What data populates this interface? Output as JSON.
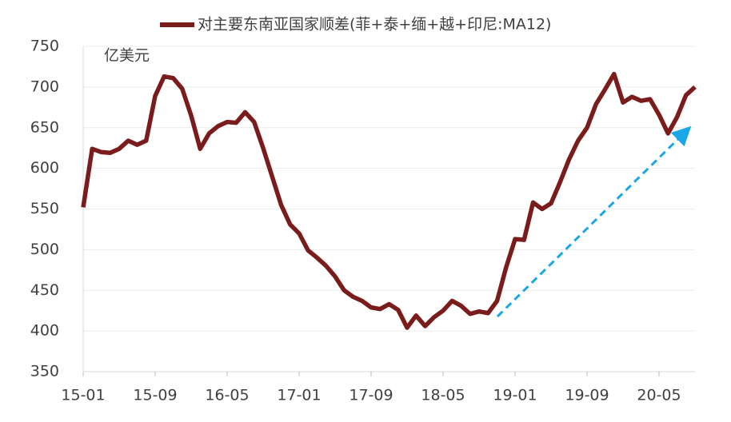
{
  "chart_data": {
    "type": "line",
    "title": "对主要东南亚国家顺差(菲+泰+缅+越+印尼:MA12)",
    "unit": "亿美元",
    "categories": [
      "15-01",
      null,
      null,
      null,
      null,
      null,
      null,
      null,
      "15-09",
      null,
      null,
      null,
      null,
      null,
      null,
      null,
      "16-05",
      null,
      null,
      null,
      null,
      null,
      null,
      null,
      "17-01",
      null,
      null,
      null,
      null,
      null,
      null,
      null,
      "17-09",
      null,
      null,
      null,
      null,
      null,
      null,
      null,
      "18-05",
      null,
      null,
      null,
      null,
      null,
      null,
      null,
      "19-01",
      null,
      null,
      null,
      null,
      null,
      null,
      null,
      "19-09",
      null,
      null,
      null,
      null,
      null,
      null,
      null,
      "20-05",
      null,
      null,
      null,
      null
    ],
    "series": [
      {
        "name": "对主要东南亚国家顺差(菲+泰+缅+越+印尼:MA12)",
        "color": "#7b1c1c",
        "values": [
          552,
          624,
          620,
          619,
          624,
          634,
          629,
          634,
          689,
          713,
          711,
          698,
          665,
          624,
          643,
          652,
          657,
          656,
          669,
          657,
          625,
          590,
          555,
          531,
          520,
          499,
          490,
          480,
          467,
          450,
          442,
          437,
          429,
          427,
          433,
          426,
          404,
          419,
          406,
          417,
          425,
          437,
          431,
          421,
          424,
          422,
          437,
          478,
          513,
          512,
          558,
          550,
          557,
          583,
          611,
          634,
          650,
          679,
          697,
          716,
          681,
          688,
          683,
          685,
          666,
          643,
          663,
          690,
          700
        ]
      }
    ],
    "ylim": [
      350,
      750
    ],
    "yticks": [
      350,
      400,
      450,
      500,
      550,
      600,
      650,
      700,
      750
    ],
    "grid": true
  }
}
